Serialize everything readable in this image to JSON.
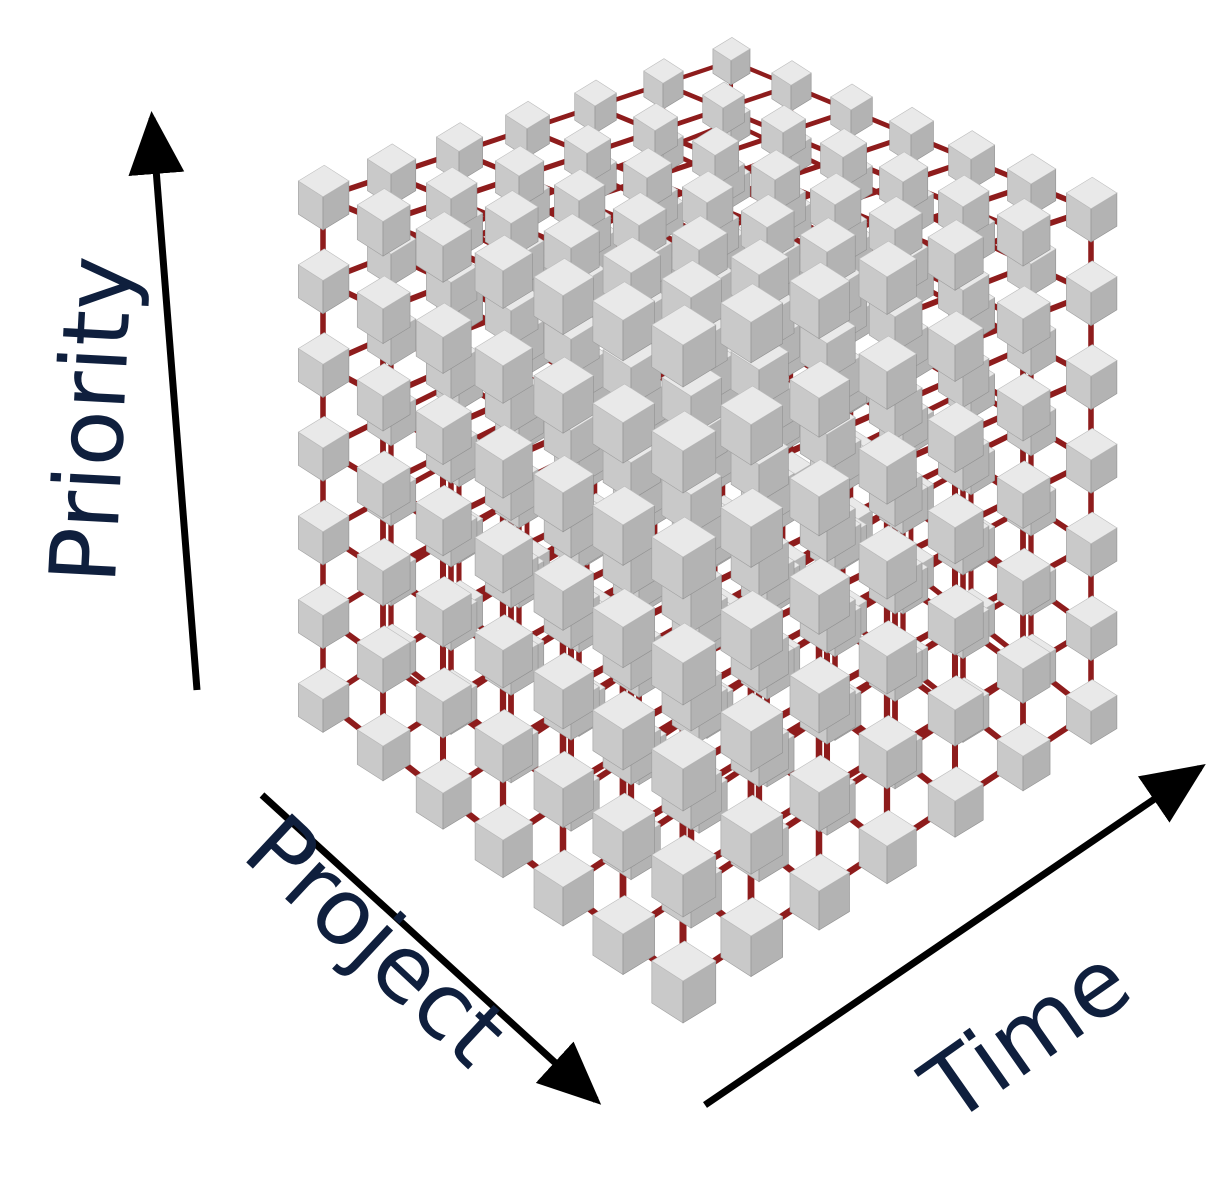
{
  "axes": {
    "priority": "Priority",
    "project": "Project",
    "time": "Time"
  }
}
